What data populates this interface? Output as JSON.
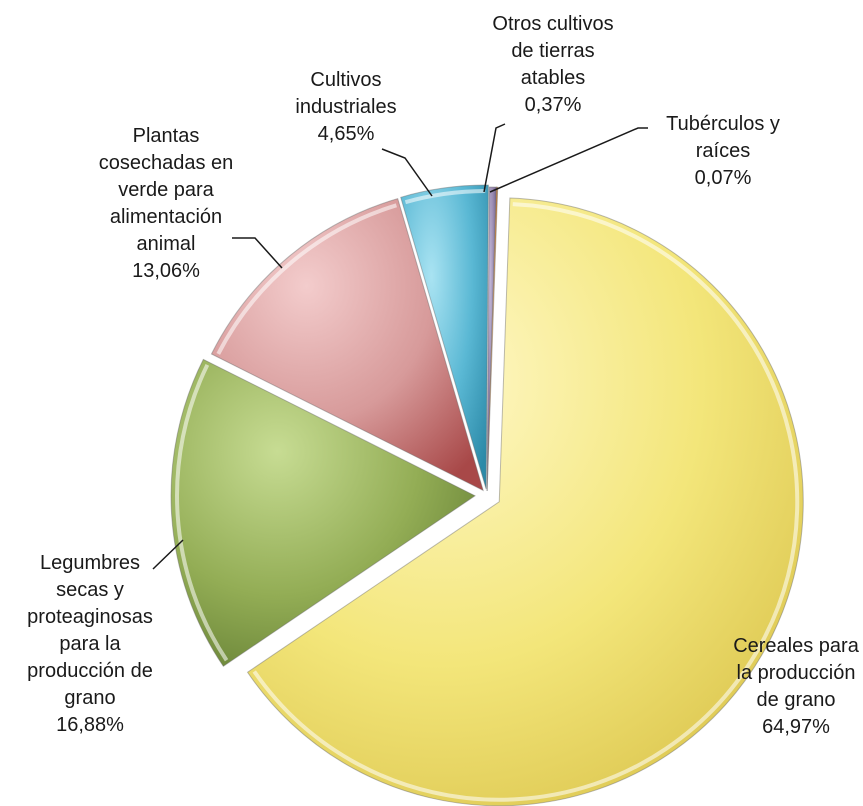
{
  "chart_data": {
    "type": "pie",
    "title": "",
    "legend": "none",
    "slices": [
      {
        "label_lines": [
          "Cereales para",
          "la producción",
          "de grano"
        ],
        "value_text": "64,97%",
        "value": 64.97,
        "color": "#f3e67a",
        "color_light": "#fff8c8",
        "color_dark": "#d9c24a"
      },
      {
        "label_lines": [
          "Legumbres",
          "secas y",
          "proteaginosas",
          "para la",
          "producción de",
          "grano"
        ],
        "value_text": "16,88%",
        "value": 16.88,
        "color": "#93ad55",
        "color_light": "#c7dc93",
        "color_dark": "#5f7a30"
      },
      {
        "label_lines": [
          "Plantas",
          "cosechadas en",
          "verde para",
          "alimentación",
          "animal"
        ],
        "value_text": "13,06%",
        "value": 13.06,
        "color": "#d79a9a",
        "color_light": "#f3cccc",
        "color_dark": "#a84848"
      },
      {
        "label_lines": [
          "Cultivos",
          "industriales"
        ],
        "value_text": "4,65%",
        "value": 4.65,
        "color": "#5ab8d4",
        "color_light": "#a9e3f2",
        "color_dark": "#2c8aa8"
      },
      {
        "label_lines": [
          "Otros cultivos",
          "de tierras",
          "atables"
        ],
        "value_text": "0,37%",
        "value": 0.37,
        "color": "#8f7fa8",
        "color_light": "#c2b6d6",
        "color_dark": "#5f4f7a"
      },
      {
        "label_lines": [
          "Tubérculos y",
          "raíces"
        ],
        "value_text": "0,07%",
        "value": 0.07,
        "color": "#e08b3c",
        "color_light": "#f5c08a",
        "color_dark": "#b0601c"
      }
    ]
  }
}
